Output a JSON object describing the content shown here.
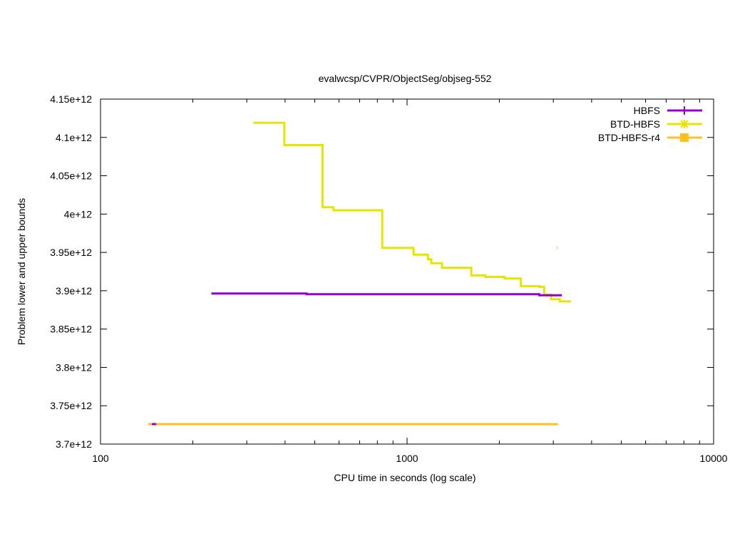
{
  "chart_data": {
    "type": "line",
    "title": "evalwcsp/CVPR/ObjectSeg/objseg-552",
    "xlabel": "CPU time in seconds (log scale)",
    "ylabel": "Problem lower and upper bounds",
    "x_scale": "log",
    "xlim": [
      100,
      10000
    ],
    "ylim": [
      3700000000000.0,
      4150000000000.0
    ],
    "x_ticks": [
      {
        "value": 100,
        "label": "100"
      },
      {
        "value": 1000,
        "label": "1000"
      },
      {
        "value": 10000,
        "label": "10000"
      }
    ],
    "y_ticks": [
      {
        "value": 3700000000000.0,
        "label": "3.7e+12"
      },
      {
        "value": 3750000000000.0,
        "label": "3.75e+12"
      },
      {
        "value": 3800000000000.0,
        "label": "3.8e+12"
      },
      {
        "value": 3850000000000.0,
        "label": "3.85e+12"
      },
      {
        "value": 3900000000000.0,
        "label": "3.9e+12"
      },
      {
        "value": 3950000000000.0,
        "label": "3.95e+12"
      },
      {
        "value": 4000000000000.0,
        "label": "4e+12"
      },
      {
        "value": 4050000000000.0,
        "label": "4.05e+12"
      },
      {
        "value": 4100000000000.0,
        "label": "4.1e+12"
      },
      {
        "value": 4150000000000.0,
        "label": "4.15e+12"
      }
    ],
    "grid": false,
    "legend_position": "top-right",
    "series": [
      {
        "name": "HBFS",
        "color": "#9400d3",
        "marker": "plus",
        "upper": [
          [
            230,
            3896500000000.0
          ],
          [
            470,
            3896500000000.0
          ],
          [
            470,
            3895500000000.0
          ],
          [
            2700,
            3895500000000.0
          ],
          [
            2700,
            3894000000000.0
          ],
          [
            3200,
            3894000000000.0
          ]
        ],
        "lower": [
          [
            147,
            3726000000000.0
          ],
          [
            152,
            3726000000000.0
          ]
        ]
      },
      {
        "name": "BTD-HBFS",
        "color": "#e5e500",
        "marker": "star",
        "upper": [
          [
            315,
            4119000000000.0
          ],
          [
            398,
            4119000000000.0
          ],
          [
            398,
            4090000000000.0
          ],
          [
            530,
            4090000000000.0
          ],
          [
            530,
            4009000000000.0
          ],
          [
            575,
            4009000000000.0
          ],
          [
            575,
            4005000000000.0
          ],
          [
            830,
            4005000000000.0
          ],
          [
            830,
            3956000000000.0
          ],
          [
            1050,
            3956000000000.0
          ],
          [
            1050,
            3947000000000.0
          ],
          [
            1170,
            3947000000000.0
          ],
          [
            1170,
            3941000000000.0
          ],
          [
            1200,
            3941000000000.0
          ],
          [
            1200,
            3936000000000.0
          ],
          [
            1300,
            3936000000000.0
          ],
          [
            1300,
            3930000000000.0
          ],
          [
            1620,
            3930000000000.0
          ],
          [
            1620,
            3920000000000.0
          ],
          [
            1800,
            3920000000000.0
          ],
          [
            1800,
            3918000000000.0
          ],
          [
            2080,
            3918000000000.0
          ],
          [
            2080,
            3916000000000.0
          ],
          [
            2350,
            3916000000000.0
          ],
          [
            2350,
            3906000000000.0
          ],
          [
            2700,
            3906000000000.0
          ],
          [
            2700,
            3905000000000.0
          ],
          [
            2800,
            3905000000000.0
          ],
          [
            2800,
            3895000000000.0
          ],
          [
            2950,
            3895000000000.0
          ],
          [
            2950,
            3889000000000.0
          ],
          [
            3150,
            3889000000000.0
          ],
          [
            3150,
            3886000000000.0
          ],
          [
            3400,
            3886000000000.0
          ],
          [
            3400,
            3885000000000.0
          ]
        ],
        "lower": [
          [
            143,
            3726000000000.0
          ],
          [
            3100,
            3726000000000.0
          ]
        ]
      },
      {
        "name": "BTD-HBFS-r4",
        "color": "#ffc020",
        "marker": "square",
        "upper": [
          [
            3080,
            3956000000000.0
          ],
          [
            3100,
            3956000000000.0
          ]
        ],
        "lower": [
          [
            143,
            3726000000000.0
          ],
          [
            3100,
            3726000000000.0
          ]
        ]
      }
    ]
  }
}
